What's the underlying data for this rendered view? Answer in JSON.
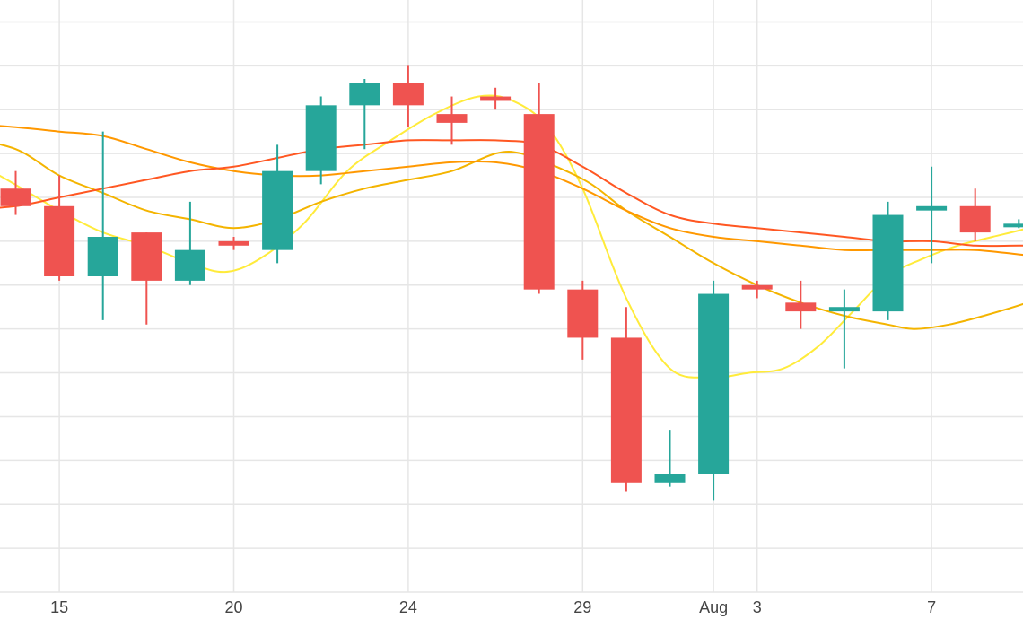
{
  "chart_data": {
    "type": "candlestick",
    "x_ticks": [
      {
        "i": 1,
        "label": "15"
      },
      {
        "i": 5,
        "label": "20"
      },
      {
        "i": 9,
        "label": "24"
      },
      {
        "i": 13,
        "label": "29"
      },
      {
        "i": 16,
        "label": "Aug"
      },
      {
        "i": 17,
        "label": "3"
      },
      {
        "i": 21,
        "label": "7"
      }
    ],
    "ylim": [
      0,
      13.5
    ],
    "grid": true,
    "colors": {
      "up": "#26a69a",
      "down": "#ef5350",
      "grid": "#e6e6e6",
      "ma_a": "#ffeb3b",
      "ma_b": "#f4b400",
      "ma_c": "#ff9800",
      "ma_d": "#ff5722"
    },
    "candles": [
      {
        "i": 0,
        "o": 9.2,
        "h": 9.6,
        "l": 8.6,
        "c": 8.8
      },
      {
        "i": 1,
        "o": 8.8,
        "h": 9.5,
        "l": 7.1,
        "c": 7.2
      },
      {
        "i": 2,
        "o": 7.2,
        "h": 10.5,
        "l": 6.2,
        "c": 8.1
      },
      {
        "i": 3,
        "o": 8.2,
        "h": 8.2,
        "l": 6.1,
        "c": 7.1
      },
      {
        "i": 4,
        "o": 7.1,
        "h": 8.9,
        "l": 7.0,
        "c": 7.8
      },
      {
        "i": 5,
        "o": 8.0,
        "h": 8.1,
        "l": 7.8,
        "c": 7.9
      },
      {
        "i": 6,
        "o": 7.8,
        "h": 10.2,
        "l": 7.5,
        "c": 9.6
      },
      {
        "i": 7,
        "o": 9.6,
        "h": 11.3,
        "l": 9.3,
        "c": 11.1
      },
      {
        "i": 8,
        "o": 11.1,
        "h": 11.7,
        "l": 10.1,
        "c": 11.6
      },
      {
        "i": 9,
        "o": 11.6,
        "h": 12.0,
        "l": 10.6,
        "c": 11.1
      },
      {
        "i": 10,
        "o": 10.9,
        "h": 11.3,
        "l": 10.2,
        "c": 10.7
      },
      {
        "i": 11,
        "o": 11.3,
        "h": 11.5,
        "l": 11.0,
        "c": 11.2
      },
      {
        "i": 12,
        "o": 10.9,
        "h": 11.6,
        "l": 6.8,
        "c": 6.9
      },
      {
        "i": 13,
        "o": 6.9,
        "h": 7.1,
        "l": 5.3,
        "c": 5.8
      },
      {
        "i": 14,
        "o": 5.8,
        "h": 6.5,
        "l": 2.3,
        "c": 2.5
      },
      {
        "i": 15,
        "o": 2.5,
        "h": 3.7,
        "l": 2.4,
        "c": 2.7
      },
      {
        "i": 16,
        "o": 2.7,
        "h": 7.1,
        "l": 2.1,
        "c": 6.8
      },
      {
        "i": 17,
        "o": 7.0,
        "h": 7.1,
        "l": 6.7,
        "c": 6.9
      },
      {
        "i": 18,
        "o": 6.6,
        "h": 7.1,
        "l": 6.0,
        "c": 6.4
      },
      {
        "i": 19,
        "o": 6.4,
        "h": 6.9,
        "l": 5.1,
        "c": 6.5
      },
      {
        "i": 20,
        "o": 6.4,
        "h": 8.9,
        "l": 6.2,
        "c": 8.6
      },
      {
        "i": 21,
        "o": 8.7,
        "h": 9.7,
        "l": 7.5,
        "c": 8.8
      },
      {
        "i": 22,
        "o": 8.8,
        "h": 9.2,
        "l": 8.0,
        "c": 8.2
      },
      {
        "i": 23,
        "o": 8.4,
        "h": 8.5,
        "l": 8.3,
        "c": 8.4
      }
    ],
    "moving_averages": [
      {
        "color": "#ffeb3b",
        "points": [
          [
            -1.3,
            10.0
          ],
          [
            -0.2,
            9.4
          ],
          [
            1.0,
            8.7
          ],
          [
            2.0,
            8.2
          ],
          [
            3.0,
            7.9
          ],
          [
            4.0,
            7.5
          ],
          [
            4.8,
            7.3
          ],
          [
            5.6,
            7.6
          ],
          [
            6.6,
            8.4
          ],
          [
            7.6,
            9.6
          ],
          [
            8.6,
            10.3
          ],
          [
            9.6,
            10.9
          ],
          [
            10.6,
            11.3
          ],
          [
            11.4,
            11.2
          ],
          [
            12.2,
            10.6
          ],
          [
            13.0,
            9.2
          ],
          [
            14.0,
            6.7
          ],
          [
            15.0,
            5.1
          ],
          [
            16.0,
            4.9
          ],
          [
            16.8,
            5.0
          ],
          [
            17.6,
            5.1
          ],
          [
            18.4,
            5.6
          ],
          [
            19.2,
            6.4
          ],
          [
            20.0,
            7.2
          ],
          [
            20.8,
            7.6
          ],
          [
            21.6,
            7.9
          ],
          [
            22.4,
            8.1
          ],
          [
            23.2,
            8.3
          ],
          [
            24.0,
            8.6
          ]
        ]
      },
      {
        "color": "#f4b400",
        "points": [
          [
            -1.3,
            10.4
          ],
          [
            0.0,
            10.1
          ],
          [
            1.0,
            9.5
          ],
          [
            2.0,
            9.1
          ],
          [
            3.0,
            8.7
          ],
          [
            4.0,
            8.5
          ],
          [
            5.0,
            8.3
          ],
          [
            6.0,
            8.5
          ],
          [
            7.0,
            8.9
          ],
          [
            8.0,
            9.2
          ],
          [
            9.0,
            9.4
          ],
          [
            10.0,
            9.6
          ],
          [
            11.0,
            10.0
          ],
          [
            11.6,
            10.0
          ],
          [
            12.4,
            9.7
          ],
          [
            13.2,
            9.3
          ],
          [
            14.0,
            8.7
          ],
          [
            15.0,
            8.1
          ],
          [
            16.0,
            7.5
          ],
          [
            17.0,
            7.0
          ],
          [
            18.0,
            6.6
          ],
          [
            19.0,
            6.3
          ],
          [
            20.0,
            6.1
          ],
          [
            20.6,
            6.0
          ],
          [
            21.4,
            6.1
          ],
          [
            22.2,
            6.3
          ],
          [
            23.2,
            6.6
          ],
          [
            24.0,
            6.9
          ]
        ]
      },
      {
        "color": "#ff9800",
        "points": [
          [
            -1.3,
            10.7
          ],
          [
            0.0,
            10.6
          ],
          [
            1.0,
            10.5
          ],
          [
            2.0,
            10.4
          ],
          [
            3.0,
            10.1
          ],
          [
            4.0,
            9.8
          ],
          [
            5.0,
            9.6
          ],
          [
            6.0,
            9.5
          ],
          [
            7.0,
            9.5
          ],
          [
            8.0,
            9.6
          ],
          [
            9.0,
            9.7
          ],
          [
            10.0,
            9.8
          ],
          [
            11.0,
            9.8
          ],
          [
            12.0,
            9.6
          ],
          [
            13.0,
            9.2
          ],
          [
            14.0,
            8.7
          ],
          [
            15.0,
            8.3
          ],
          [
            16.0,
            8.1
          ],
          [
            17.0,
            8.0
          ],
          [
            18.0,
            7.9
          ],
          [
            19.0,
            7.8
          ],
          [
            20.0,
            7.8
          ],
          [
            21.0,
            7.8
          ],
          [
            22.0,
            7.8
          ],
          [
            23.0,
            7.7
          ],
          [
            24.0,
            7.6
          ]
        ]
      },
      {
        "color": "#ff5722",
        "points": [
          [
            -1.3,
            8.7
          ],
          [
            0.0,
            8.8
          ],
          [
            1.0,
            9.0
          ],
          [
            2.0,
            9.2
          ],
          [
            3.0,
            9.4
          ],
          [
            4.0,
            9.6
          ],
          [
            5.0,
            9.7
          ],
          [
            6.0,
            9.9
          ],
          [
            7.0,
            10.1
          ],
          [
            8.0,
            10.2
          ],
          [
            9.0,
            10.3
          ],
          [
            10.0,
            10.3
          ],
          [
            11.0,
            10.3
          ],
          [
            12.0,
            10.2
          ],
          [
            13.0,
            9.7
          ],
          [
            14.0,
            9.1
          ],
          [
            15.0,
            8.6
          ],
          [
            16.0,
            8.4
          ],
          [
            17.0,
            8.3
          ],
          [
            18.0,
            8.2
          ],
          [
            19.0,
            8.1
          ],
          [
            20.0,
            8.0
          ],
          [
            21.0,
            8.0
          ],
          [
            22.0,
            7.9
          ],
          [
            23.0,
            7.9
          ],
          [
            24.0,
            7.9
          ]
        ]
      }
    ]
  }
}
